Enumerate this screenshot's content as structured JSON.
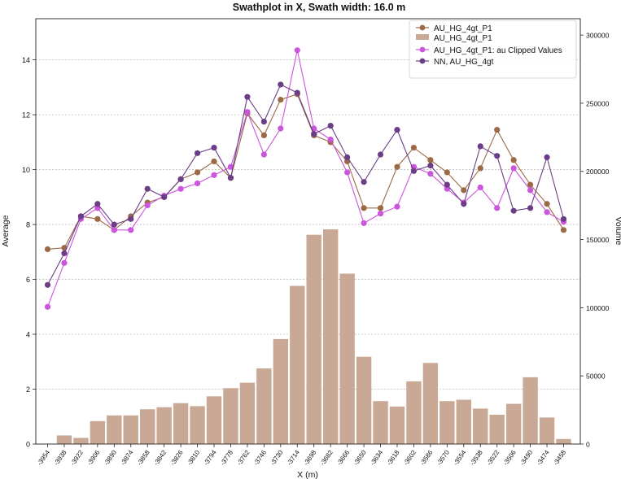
{
  "chart_data": {
    "type": "bar+line",
    "title": "Swathplot in X, Swath width: 16.0 m",
    "xlabel": "X (m)",
    "ylabel": "Average",
    "y2label": "Volume",
    "ylim": [
      0,
      15.5
    ],
    "y2lim": [
      0,
      312000
    ],
    "yticks": [
      0,
      2,
      4,
      6,
      8,
      10,
      12,
      14
    ],
    "y2ticks": [
      0,
      50000,
      100000,
      150000,
      200000,
      250000,
      300000
    ],
    "y2tick_labels": [
      "0",
      "50000",
      "100000",
      "150000",
      "200000",
      "250000",
      "300000"
    ],
    "grid": "horizontal dotted",
    "legend_position": "top-right",
    "categories": [
      "-3954",
      "-3938",
      "-3922",
      "-3906",
      "-3890",
      "-3874",
      "-3858",
      "-3842",
      "-3826",
      "-3810",
      "-3794",
      "-3778",
      "-3762",
      "-3746",
      "-3730",
      "-3714",
      "-3698",
      "-3682",
      "-3666",
      "-3650",
      "-3634",
      "-3618",
      "-3602",
      "-3586",
      "-3570",
      "-3554",
      "-3538",
      "-3522",
      "-3506",
      "-3490",
      "-3474",
      "-3458"
    ],
    "series": [
      {
        "name": "AU_HG_4gt_P1",
        "kind": "line",
        "color": "#9b6a45",
        "values": [
          7.1,
          7.15,
          8.3,
          8.2,
          7.8,
          8.3,
          8.8,
          9.0,
          9.65,
          9.9,
          10.3,
          9.7,
          12.05,
          11.25,
          12.55,
          12.75,
          11.25,
          11.0,
          10.3,
          8.6,
          8.6,
          10.1,
          10.8,
          10.35,
          9.9,
          9.25,
          10.05,
          11.45,
          10.35,
          9.45,
          8.75,
          7.8
        ]
      },
      {
        "name": "AU_HG_4gt_P1",
        "kind": "bar",
        "axis": "right",
        "color": "#c9a995",
        "values": [
          0,
          6300,
          4500,
          16800,
          21000,
          21000,
          25500,
          27000,
          30000,
          27800,
          35000,
          41000,
          45000,
          55500,
          77000,
          116000,
          153500,
          157500,
          125000,
          64000,
          31500,
          27500,
          46000,
          59500,
          31500,
          32500,
          26000,
          21500,
          29500,
          49000,
          19500,
          3700
        ]
      },
      {
        "name": "AU_HG_4gt_P1: au Clipped Values",
        "kind": "line",
        "color": "#cc55dd",
        "values": [
          5.0,
          6.6,
          8.2,
          8.6,
          7.8,
          7.8,
          8.7,
          9.05,
          9.3,
          9.5,
          9.8,
          10.1,
          12.1,
          10.55,
          11.5,
          14.35,
          11.5,
          11.1,
          9.9,
          8.05,
          8.4,
          8.65,
          10.1,
          9.85,
          9.3,
          8.8,
          9.35,
          8.6,
          10.05,
          9.25,
          8.45,
          8.1
        ]
      },
      {
        "name": "NN, AU_HG_4gt",
        "kind": "line",
        "color": "#6b3d86",
        "values": [
          5.8,
          6.95,
          8.3,
          8.75,
          8.0,
          8.2,
          9.3,
          9.0,
          9.65,
          10.6,
          10.8,
          9.7,
          12.65,
          11.75,
          13.1,
          12.8,
          11.3,
          11.6,
          10.45,
          9.55,
          10.55,
          11.45,
          9.95,
          10.15,
          9.45,
          8.75,
          10.85,
          10.5,
          8.5,
          8.6,
          10.45,
          8.2
        ]
      }
    ]
  }
}
